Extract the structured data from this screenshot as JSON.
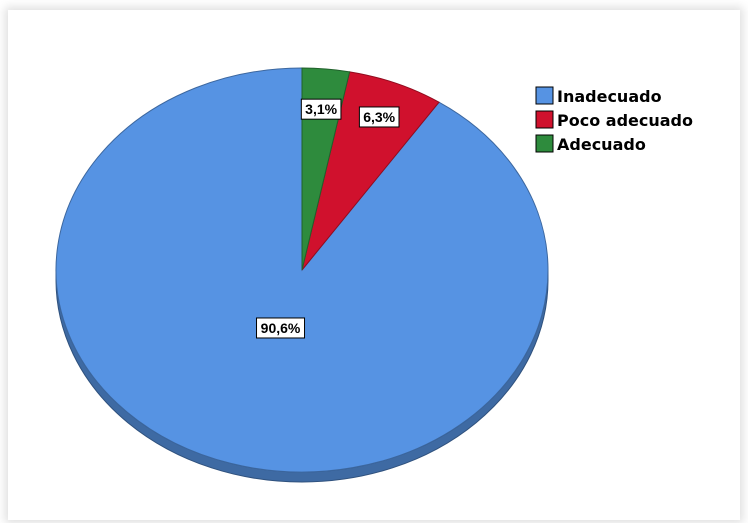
{
  "chart_data": {
    "type": "pie",
    "title": "",
    "categories": [
      "Inadecuado",
      "Poco adecuado",
      "Adecuado"
    ],
    "values": [
      90.6,
      6.3,
      3.1
    ],
    "value_labels": [
      "90,6%",
      "6,3%",
      "3,1%"
    ],
    "colors": [
      "#5693e3",
      "#d0112d",
      "#2e8b3d"
    ],
    "legend_position": "top-right",
    "start": "12 o'clock, counter-clockwise"
  }
}
